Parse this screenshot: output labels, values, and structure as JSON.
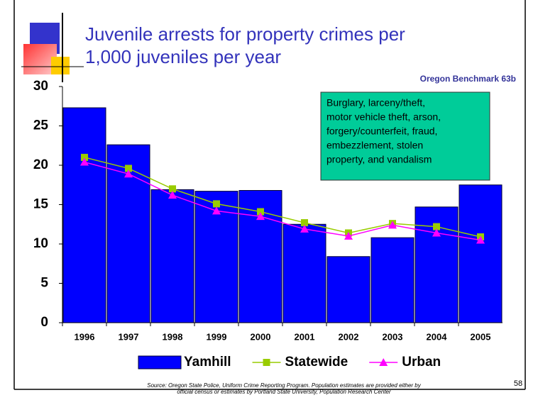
{
  "slide": {
    "page_number": "58",
    "source": [
      "Source:  Oregon State Police, Uniform Crime Reporting Program. Population estimates are provided either by",
      "official census or estimates by Portland State University, Population Research Center"
    ]
  },
  "chart_data": {
    "type": "bar",
    "title": [
      "Juvenile arrests for property crimes per",
      "1,000 juveniles per year"
    ],
    "subtitle": "Oregon Benchmark 63b",
    "annotation": [
      "Burglary, larceny/theft,",
      "motor vehicle theft, arson,",
      "forgery/counterfeit, fraud,",
      "embezzlement, stolen",
      "property, and vandalism"
    ],
    "categories": [
      "1996",
      "1997",
      "1998",
      "1999",
      "2000",
      "2001",
      "2002",
      "2003",
      "2004",
      "2005"
    ],
    "series": [
      {
        "name": "Yamhill",
        "type": "bar",
        "color": "#0000ff",
        "values": [
          27.3,
          22.6,
          16.9,
          16.7,
          16.8,
          12.5,
          8.4,
          10.8,
          14.7,
          17.5
        ]
      },
      {
        "name": "Statewide",
        "type": "line",
        "marker": "square",
        "color": "#99cc00",
        "values": [
          21.0,
          19.6,
          17.0,
          15.1,
          14.1,
          12.7,
          11.4,
          12.6,
          12.2,
          10.9
        ]
      },
      {
        "name": "Urban",
        "type": "line",
        "marker": "triangle",
        "color": "#ff00ff",
        "values": [
          20.4,
          18.9,
          16.2,
          14.2,
          13.5,
          11.9,
          11.0,
          12.4,
          11.4,
          10.5
        ]
      }
    ],
    "ylim": [
      0,
      30
    ],
    "yticks": [
      0,
      5,
      10,
      15,
      20,
      25,
      30
    ]
  }
}
